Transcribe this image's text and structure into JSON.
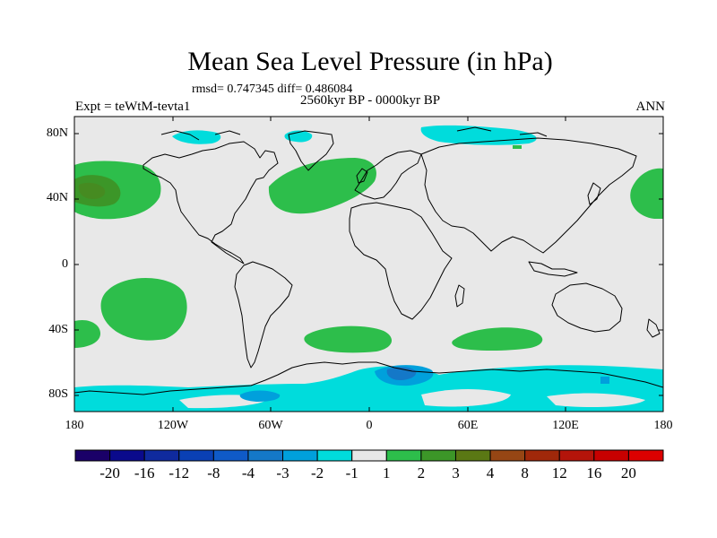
{
  "title": "Mean Sea Level Pressure (in hPa)",
  "stats": "rmsd= 0.747345 diff= 0.486084",
  "period": "2560kyr BP - 0000kyr BP",
  "experiment": "Expt = teWtM-tevta1",
  "season": "ANN",
  "y_ticks": [
    "80N",
    "40N",
    "0",
    "40S",
    "80S"
  ],
  "x_ticks": [
    "180",
    "120W",
    "60W",
    "0",
    "60E",
    "120E",
    "180"
  ],
  "colorbar": {
    "labels": [
      "-20",
      "-16",
      "-12",
      "-8",
      "-4",
      "-3",
      "-2",
      "-1",
      "1",
      "2",
      "3",
      "4",
      "8",
      "12",
      "16",
      "20"
    ],
    "colors": [
      "#1a0068",
      "#0a0a8c",
      "#0f2a9e",
      "#0a40b4",
      "#0f5ac8",
      "#1478c8",
      "#00a0dc",
      "#00dcdc",
      "#e8e8e8",
      "#2dbe4b",
      "#3c9628",
      "#5a7814",
      "#964614",
      "#a0280a",
      "#b4140a",
      "#c80000",
      "#dc0000"
    ]
  },
  "field_colors": {
    "ocean_background": "#e8e8e8",
    "positive_1_2": "#2dbe4b",
    "positive_2_3": "#3c9628",
    "positive_3_4": "#5a7814",
    "negative_1_2": "#00dcdc",
    "negative_2_3": "#00a0dc",
    "negative_3_4": "#1478c8",
    "negative_4_8": "#0f5ac8",
    "coastline": "#000000"
  }
}
